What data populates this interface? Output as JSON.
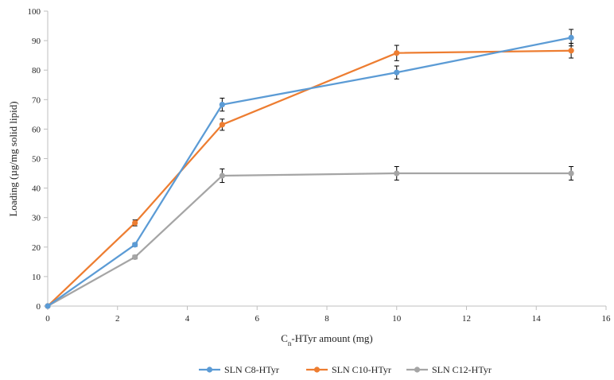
{
  "chart_data": {
    "type": "line",
    "title": "",
    "xlabel_parts": [
      "C",
      "n",
      "-HTyr amount (mg)"
    ],
    "ylabel": "Loading (µg/mg solid lipid)",
    "xlim": [
      0,
      16
    ],
    "ylim": [
      0,
      100
    ],
    "xticks": [
      0,
      2,
      4,
      6,
      8,
      10,
      12,
      14,
      16
    ],
    "yticks": [
      0,
      10,
      20,
      30,
      40,
      50,
      60,
      70,
      80,
      90,
      100
    ],
    "x": [
      0,
      2.5,
      5,
      10,
      15
    ],
    "series": [
      {
        "name": "SLN C8-HTyr",
        "color": "#5b9bd5",
        "values": [
          0,
          20.8,
          68.3,
          79.2,
          91.0
        ],
        "errors": [
          0,
          0.6,
          2.2,
          2.2,
          2.8
        ]
      },
      {
        "name": "SLN C10-HTyr",
        "color": "#ed7d31",
        "values": [
          0,
          28.2,
          61.5,
          85.8,
          86.6
        ],
        "errors": [
          0,
          1.0,
          1.9,
          2.6,
          2.5
        ]
      },
      {
        "name": "SLN C12-HTyr",
        "color": "#a5a5a5",
        "values": [
          0,
          16.6,
          44.2,
          45.0,
          45.0
        ],
        "errors": [
          0,
          0.6,
          2.3,
          2.3,
          2.3
        ]
      }
    ],
    "legend_position": "bottom-center",
    "grid": false
  }
}
